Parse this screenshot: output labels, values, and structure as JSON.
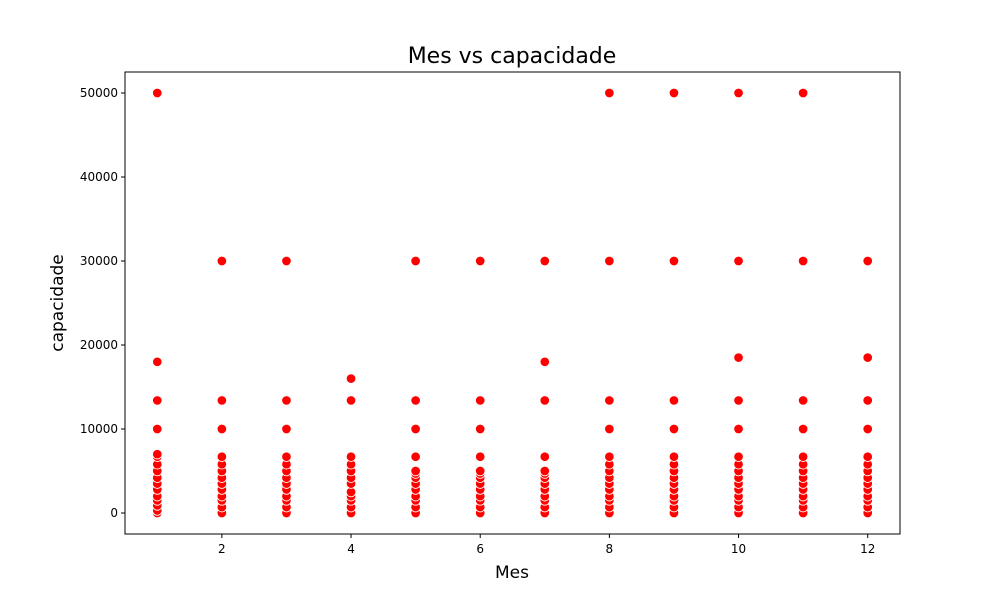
{
  "chart_data": {
    "type": "scatter",
    "title": "Mes vs capacidade",
    "xlabel": "Mes",
    "ylabel": "capacidade",
    "xlim": [
      0.5,
      12.5
    ],
    "ylim": [
      -2500,
      52500
    ],
    "x_ticks": [
      2,
      4,
      6,
      8,
      10,
      12
    ],
    "y_ticks": [
      0,
      10000,
      20000,
      30000,
      40000,
      50000
    ],
    "x_tick_labels": [
      "2",
      "4",
      "6",
      "8",
      "10",
      "12"
    ],
    "y_tick_labels": [
      "0",
      "10000",
      "20000",
      "30000",
      "40000",
      "50000"
    ],
    "grid": false,
    "legend": "none",
    "marker_color": "#ff0000",
    "marker_edge_color": "#ffffff",
    "series": [
      {
        "points": [
          [
            1,
            0
          ],
          [
            1,
            300
          ],
          [
            1,
            900
          ],
          [
            1,
            1500
          ],
          [
            1,
            2000
          ],
          [
            1,
            2800
          ],
          [
            1,
            3500
          ],
          [
            1,
            4200
          ],
          [
            1,
            5000
          ],
          [
            1,
            5800
          ],
          [
            1,
            6700
          ],
          [
            1,
            7000
          ],
          [
            1,
            10000
          ],
          [
            1,
            13400
          ],
          [
            1,
            18000
          ],
          [
            1,
            50000
          ],
          [
            2,
            0
          ],
          [
            2,
            700
          ],
          [
            2,
            1500
          ],
          [
            2,
            2000
          ],
          [
            2,
            2800
          ],
          [
            2,
            3500
          ],
          [
            2,
            4200
          ],
          [
            2,
            5000
          ],
          [
            2,
            5800
          ],
          [
            2,
            6700
          ],
          [
            2,
            10000
          ],
          [
            2,
            13400
          ],
          [
            2,
            30000
          ],
          [
            3,
            0
          ],
          [
            3,
            700
          ],
          [
            3,
            1500
          ],
          [
            3,
            2000
          ],
          [
            3,
            2800
          ],
          [
            3,
            3500
          ],
          [
            3,
            4200
          ],
          [
            3,
            5000
          ],
          [
            3,
            5800
          ],
          [
            3,
            6700
          ],
          [
            3,
            10000
          ],
          [
            3,
            13400
          ],
          [
            3,
            30000
          ],
          [
            4,
            0
          ],
          [
            4,
            700
          ],
          [
            4,
            1500
          ],
          [
            4,
            2000
          ],
          [
            4,
            2500
          ],
          [
            4,
            3500
          ],
          [
            4,
            4200
          ],
          [
            4,
            5000
          ],
          [
            4,
            5800
          ],
          [
            4,
            6700
          ],
          [
            4,
            13400
          ],
          [
            4,
            16000
          ],
          [
            5,
            0
          ],
          [
            5,
            700
          ],
          [
            5,
            1500
          ],
          [
            5,
            2000
          ],
          [
            5,
            2800
          ],
          [
            5,
            3500
          ],
          [
            5,
            4200
          ],
          [
            5,
            4700
          ],
          [
            5,
            5000
          ],
          [
            5,
            6700
          ],
          [
            5,
            10000
          ],
          [
            5,
            13400
          ],
          [
            5,
            30000
          ],
          [
            6,
            0
          ],
          [
            6,
            700
          ],
          [
            6,
            1500
          ],
          [
            6,
            2000
          ],
          [
            6,
            2800
          ],
          [
            6,
            3500
          ],
          [
            6,
            4200
          ],
          [
            6,
            4700
          ],
          [
            6,
            5000
          ],
          [
            6,
            6700
          ],
          [
            6,
            10000
          ],
          [
            6,
            13400
          ],
          [
            6,
            30000
          ],
          [
            7,
            0
          ],
          [
            7,
            700
          ],
          [
            7,
            1500
          ],
          [
            7,
            2000
          ],
          [
            7,
            2800
          ],
          [
            7,
            3500
          ],
          [
            7,
            4200
          ],
          [
            7,
            4700
          ],
          [
            7,
            5000
          ],
          [
            7,
            6700
          ],
          [
            7,
            13400
          ],
          [
            7,
            18000
          ],
          [
            7,
            30000
          ],
          [
            8,
            0
          ],
          [
            8,
            700
          ],
          [
            8,
            1500
          ],
          [
            8,
            2000
          ],
          [
            8,
            2800
          ],
          [
            8,
            3500
          ],
          [
            8,
            4200
          ],
          [
            8,
            5000
          ],
          [
            8,
            5800
          ],
          [
            8,
            6700
          ],
          [
            8,
            10000
          ],
          [
            8,
            13400
          ],
          [
            8,
            30000
          ],
          [
            8,
            50000
          ],
          [
            9,
            0
          ],
          [
            9,
            700
          ],
          [
            9,
            1500
          ],
          [
            9,
            2000
          ],
          [
            9,
            2800
          ],
          [
            9,
            3500
          ],
          [
            9,
            4200
          ],
          [
            9,
            5000
          ],
          [
            9,
            5800
          ],
          [
            9,
            6700
          ],
          [
            9,
            10000
          ],
          [
            9,
            13400
          ],
          [
            9,
            30000
          ],
          [
            9,
            50000
          ],
          [
            10,
            0
          ],
          [
            10,
            700
          ],
          [
            10,
            1500
          ],
          [
            10,
            2000
          ],
          [
            10,
            2800
          ],
          [
            10,
            3500
          ],
          [
            10,
            4200
          ],
          [
            10,
            5000
          ],
          [
            10,
            5800
          ],
          [
            10,
            6700
          ],
          [
            10,
            10000
          ],
          [
            10,
            13400
          ],
          [
            10,
            18500
          ],
          [
            10,
            30000
          ],
          [
            10,
            50000
          ],
          [
            11,
            0
          ],
          [
            11,
            700
          ],
          [
            11,
            1500
          ],
          [
            11,
            2000
          ],
          [
            11,
            2800
          ],
          [
            11,
            3500
          ],
          [
            11,
            4200
          ],
          [
            11,
            5000
          ],
          [
            11,
            5800
          ],
          [
            11,
            6700
          ],
          [
            11,
            10000
          ],
          [
            11,
            13400
          ],
          [
            11,
            30000
          ],
          [
            11,
            50000
          ],
          [
            12,
            0
          ],
          [
            12,
            700
          ],
          [
            12,
            1500
          ],
          [
            12,
            2000
          ],
          [
            12,
            2800
          ],
          [
            12,
            3500
          ],
          [
            12,
            4200
          ],
          [
            12,
            5000
          ],
          [
            12,
            5800
          ],
          [
            12,
            6700
          ],
          [
            12,
            10000
          ],
          [
            12,
            13400
          ],
          [
            12,
            18500
          ],
          [
            12,
            30000
          ]
        ]
      }
    ]
  }
}
